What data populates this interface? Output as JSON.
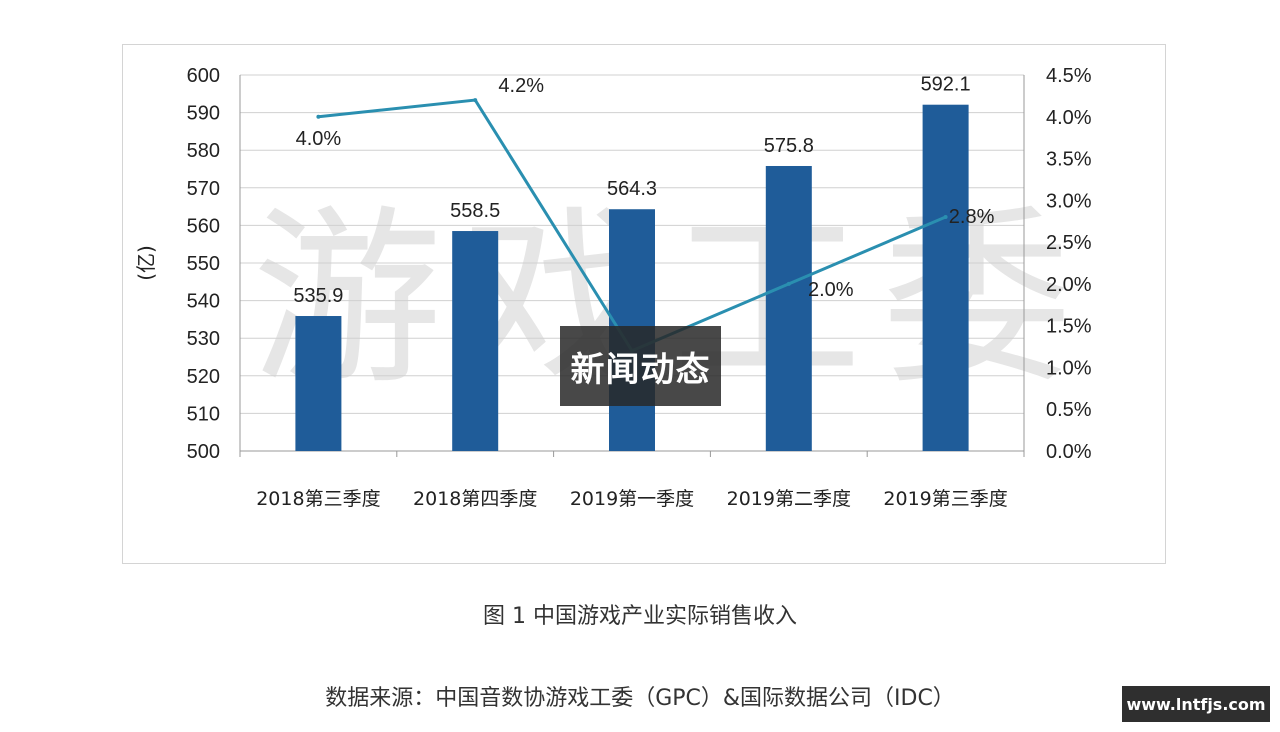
{
  "chart_data": {
    "type": "bar",
    "categories": [
      "2018第三季度",
      "2018第四季度",
      "2019第一季度",
      "2019第二季度",
      "2019第三季度"
    ],
    "series": [
      {
        "type": "bar",
        "values": [
          535.9,
          558.5,
          564.3,
          575.8,
          592.1
        ],
        "color": "#1f5c99",
        "axis": "left"
      },
      {
        "type": "line",
        "values": [
          4.0,
          4.2,
          1.2,
          2.0,
          2.8
        ],
        "labels": [
          "4.0%",
          "4.2%",
          "",
          "2.0%",
          "2.8%"
        ],
        "color": "#2a8fb0",
        "axis": "right"
      }
    ],
    "ylabel": "(亿)",
    "ylim": [
      500,
      600
    ],
    "yticks": [
      "500",
      "510",
      "520",
      "530",
      "540",
      "550",
      "560",
      "570",
      "580",
      "590",
      "600"
    ],
    "y2lim": [
      0,
      4.5
    ],
    "y2ticks": [
      "0.0%",
      "0.5%",
      "1.0%",
      "1.5%",
      "2.0%",
      "2.5%",
      "3.0%",
      "3.5%",
      "4.0%",
      "4.5%"
    ],
    "grid": true,
    "bar_labels": [
      "535.9",
      "558.5",
      "564.3",
      "575.8",
      "592.1"
    ]
  },
  "watermark_text": "游戏工委",
  "overlay_badge": "新闻动态",
  "caption": "图 1  中国游戏产业实际销售收入",
  "source": "数据来源：中国音数协游戏工委（GPC）&国际数据公司（IDC）",
  "site_badge": "www.lntfjs.com"
}
